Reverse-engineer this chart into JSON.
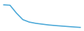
{
  "x": [
    0,
    1,
    2,
    3,
    4,
    5,
    6,
    7,
    8,
    9,
    10,
    11,
    12
  ],
  "y": [
    38,
    37.5,
    28,
    20,
    17,
    15.5,
    14.5,
    13.5,
    12.8,
    12.2,
    11.6,
    11.0,
    10.5
  ],
  "line_color": "#4aa8d8",
  "linewidth": 1.2,
  "background_color": "#ffffff",
  "ylim": [
    8,
    42
  ],
  "xlim": [
    -0.3,
    12.3
  ]
}
